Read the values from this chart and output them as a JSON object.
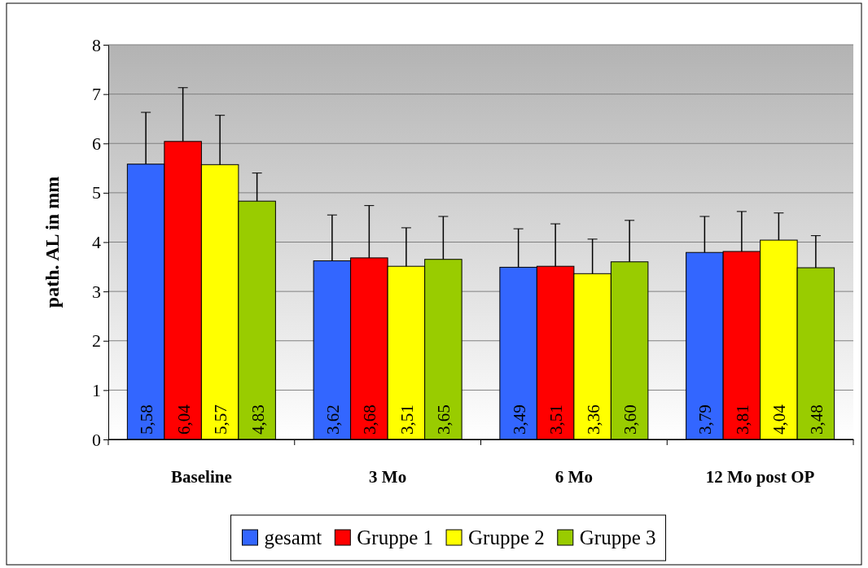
{
  "chart_data": {
    "type": "bar",
    "ylabel": "path. AL in mm",
    "categories": [
      "Baseline",
      "3 Mo",
      "6 Mo",
      "12 Mo post OP"
    ],
    "ylim": [
      0,
      8
    ],
    "yticks": [
      0,
      1,
      2,
      3,
      4,
      5,
      6,
      7,
      8
    ],
    "grid": "y",
    "legend": "bottom",
    "series": [
      {
        "name": "gesamt",
        "color": "#3366ff",
        "values": [
          5.58,
          3.62,
          3.49,
          3.79
        ],
        "value_labels": [
          "5,58",
          "3,62",
          "3,49",
          "3,79"
        ],
        "errors": [
          [
            5.58,
            6.63
          ],
          [
            3.62,
            4.55
          ],
          [
            3.49,
            4.27
          ],
          [
            3.79,
            4.52
          ]
        ]
      },
      {
        "name": "Gruppe 1",
        "color": "#ff0000",
        "values": [
          6.04,
          3.68,
          3.51,
          3.81
        ],
        "value_labels": [
          "6,04",
          "3,68",
          "3,51",
          "3,81"
        ],
        "errors": [
          [
            6.04,
            7.13
          ],
          [
            3.68,
            4.74
          ],
          [
            3.51,
            4.37
          ],
          [
            3.81,
            4.62
          ]
        ]
      },
      {
        "name": "Gruppe 2",
        "color": "#ffff00",
        "values": [
          5.57,
          3.51,
          3.36,
          4.04
        ],
        "value_labels": [
          "5,57",
          "3,51",
          "3,36",
          "4,04"
        ],
        "errors": [
          [
            5.57,
            6.57
          ],
          [
            3.51,
            4.29
          ],
          [
            3.36,
            4.06
          ],
          [
            4.04,
            4.59
          ]
        ]
      },
      {
        "name": "Gruppe 3",
        "color": "#99cc00",
        "values": [
          4.83,
          3.65,
          3.6,
          3.48
        ],
        "value_labels": [
          "4,83",
          "3,65",
          "3,60",
          "3,48"
        ],
        "errors": [
          [
            4.83,
            5.4
          ],
          [
            3.65,
            4.52
          ],
          [
            3.6,
            4.44
          ],
          [
            3.48,
            4.13
          ]
        ]
      }
    ]
  }
}
